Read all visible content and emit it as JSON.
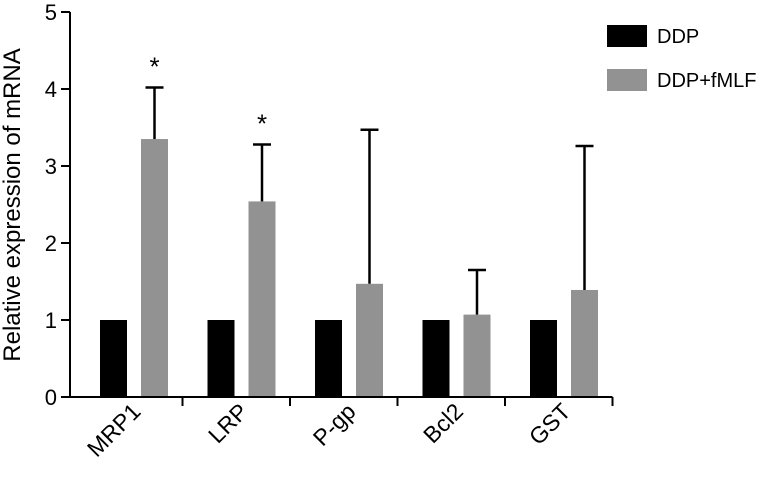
{
  "chart_data": {
    "type": "bar",
    "categories": [
      "MRP1",
      "LRP",
      "P-gp",
      "Bcl2",
      "GST"
    ],
    "series": [
      {
        "name": "DDP",
        "values": [
          1,
          1,
          1,
          1,
          1
        ],
        "errors": [
          0,
          0,
          0,
          0,
          0
        ],
        "color": "#000000"
      },
      {
        "name": "DDP+fMLF",
        "values": [
          3.35,
          2.54,
          1.47,
          1.07,
          1.39
        ],
        "errors": [
          0.67,
          0.74,
          2.0,
          0.58,
          1.87
        ],
        "color": "#929292"
      }
    ],
    "significance": [
      "*",
      "*",
      "",
      "",
      ""
    ],
    "title": "",
    "xlabel": "",
    "ylabel": "Relative expression of mRNA",
    "ylim": [
      0,
      5
    ],
    "yticks": [
      "0",
      "1",
      "2",
      "3",
      "4",
      "5"
    ],
    "grid": false,
    "legend_position": "top-right"
  }
}
